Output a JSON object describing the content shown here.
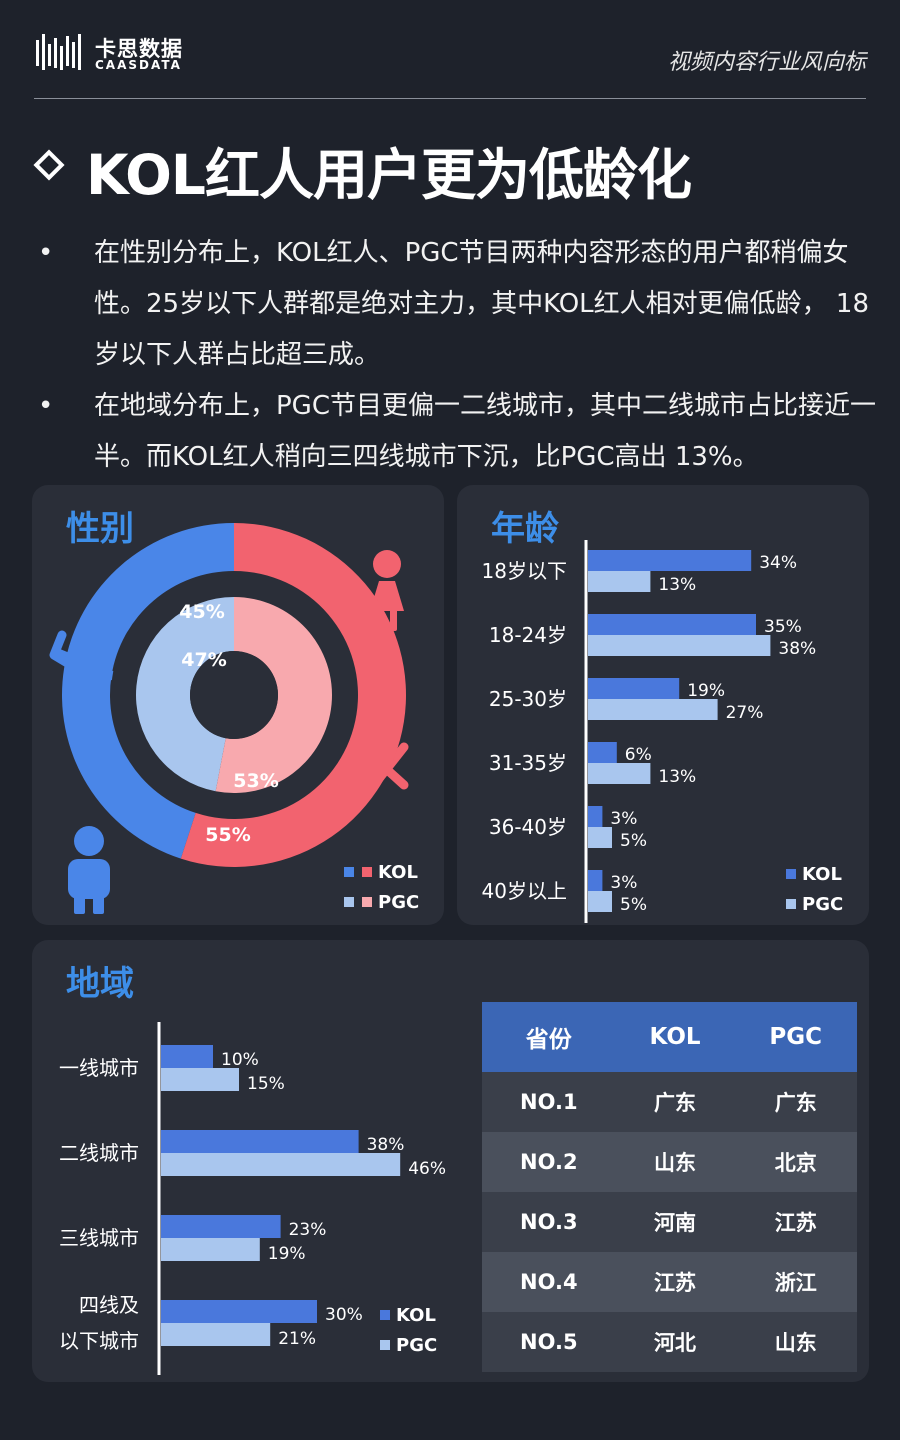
{
  "header": {
    "logo_cn": "卡思数据",
    "logo_en": "CAASDATA",
    "tagline": "视频内容行业风向标"
  },
  "title": "KOL红人用户更为低龄化",
  "bullets": [
    "在性别分布上，KOL红人、PGC节目两种内容形态的用户都稍偏女性。25岁以下人群都是绝对主力，其中KOL红人相对更偏低龄， 18岁以下人群占比超三成。",
    "在地域分布上，PGC节目更偏一二线城市，其中二线城市占比接近一半。而KOL红人稍向三四线城市下沉，比PGC高出 13%。"
  ],
  "bullet_symbol": "•",
  "colors": {
    "kol": "#4a78dc",
    "pgc": "#a9c6ee",
    "male_kol": "#4a86e8",
    "male_pgc": "#a9c6ee",
    "female_kol": "#f2636f",
    "female_pgc": "#f8a9ae",
    "accent": "#3d8ee8"
  },
  "icons": [
    "female-icon",
    "male-icon",
    "female-symbol-icon",
    "male-symbol-icon"
  ],
  "chart_data": [
    {
      "type": "pie",
      "title": "性别",
      "series": [
        {
          "name": "KOL",
          "labels": [
            "男",
            "女"
          ],
          "values": [
            45,
            55
          ],
          "value_labels": [
            "45%",
            "55%"
          ]
        },
        {
          "name": "PGC",
          "labels": [
            "男",
            "女"
          ],
          "values": [
            47,
            53
          ],
          "value_labels": [
            "47%",
            "53%"
          ]
        }
      ],
      "legend": [
        "KOL",
        "PGC"
      ],
      "legend_position": "bottom-right"
    },
    {
      "type": "bar",
      "orientation": "horizontal",
      "title": "年龄",
      "categories": [
        "18岁以下",
        "18-24岁",
        "25-30岁",
        "31-35岁",
        "36-40岁",
        "40岁以上"
      ],
      "series": [
        {
          "name": "KOL",
          "values": [
            34,
            35,
            19,
            6,
            3,
            3
          ]
        },
        {
          "name": "PGC",
          "values": [
            13,
            38,
            27,
            13,
            5,
            5
          ]
        }
      ],
      "value_suffix": "%",
      "legend_position": "bottom-right"
    },
    {
      "type": "bar",
      "orientation": "horizontal",
      "title": "地域",
      "categories": [
        "一线城市",
        "二线城市",
        "三线城市",
        "四线及以下城市"
      ],
      "category_lines": [
        [
          "一线城市"
        ],
        [
          "二线城市"
        ],
        [
          "三线城市"
        ],
        [
          "四线及",
          "以下城市"
        ]
      ],
      "series": [
        {
          "name": "KOL",
          "values": [
            10,
            38,
            23,
            30
          ]
        },
        {
          "name": "PGC",
          "values": [
            15,
            46,
            19,
            21
          ]
        }
      ],
      "value_suffix": "%",
      "legend_position": "bottom-right"
    },
    {
      "type": "table",
      "columns": [
        "省份",
        "KOL",
        "PGC"
      ],
      "rows": [
        [
          "NO.1",
          "广东",
          "广东"
        ],
        [
          "NO.2",
          "山东",
          "北京"
        ],
        [
          "NO.3",
          "河南",
          "江苏"
        ],
        [
          "NO.4",
          "江苏",
          "浙江"
        ],
        [
          "NO.5",
          "河北",
          "山东"
        ]
      ]
    }
  ]
}
